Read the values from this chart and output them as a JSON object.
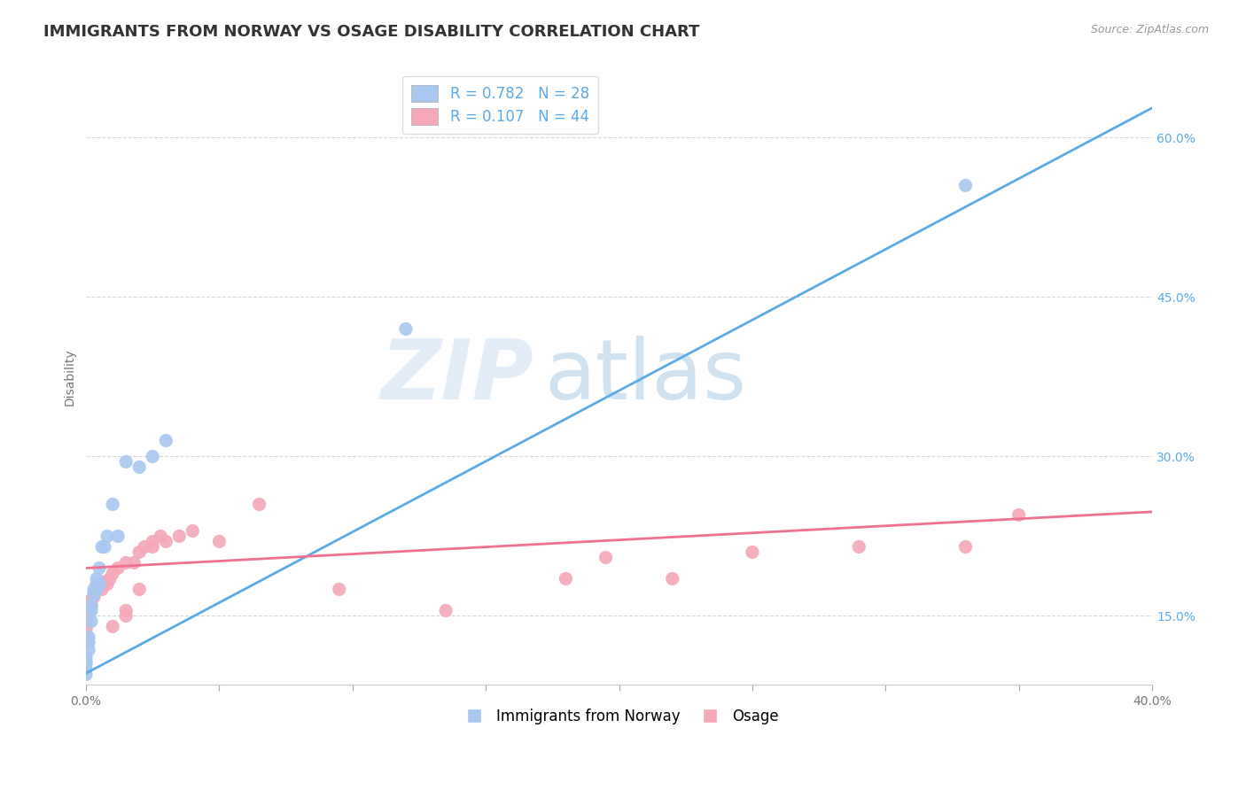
{
  "title": "IMMIGRANTS FROM NORWAY VS OSAGE DISABILITY CORRELATION CHART",
  "source_text": "Source: ZipAtlas.com",
  "ylabel": "Disability",
  "xmin": 0.0,
  "xmax": 0.4,
  "ymin": 0.085,
  "ymax": 0.665,
  "yticks": [
    0.15,
    0.3,
    0.45,
    0.6
  ],
  "ytick_labels": [
    "15.0%",
    "30.0%",
    "45.0%",
    "60.0%"
  ],
  "xticks": [
    0.0,
    0.05,
    0.1,
    0.15,
    0.2,
    0.25,
    0.3,
    0.35,
    0.4
  ],
  "xtick_labels_show": [
    "0.0%",
    "",
    "",
    "",
    "",
    "",
    "",
    "",
    "40.0%"
  ],
  "norway_color": "#a8c8f0",
  "osage_color": "#f4a8b8",
  "norway_line_color": "#5baae8",
  "osage_line_color": "#f07090",
  "norway_R": 0.782,
  "norway_N": 28,
  "osage_R": 0.107,
  "osage_N": 44,
  "legend_label_1": "Immigrants from Norway",
  "legend_label_2": "Osage",
  "norway_line_x0": 0.0,
  "norway_line_y0": 0.096,
  "norway_line_x1": 0.4,
  "norway_line_y1": 0.628,
  "osage_line_x0": 0.0,
  "osage_line_y0": 0.195,
  "osage_line_x1": 0.4,
  "osage_line_y1": 0.248,
  "norway_x": [
    0.0,
    0.0,
    0.0,
    0.0,
    0.0,
    0.001,
    0.001,
    0.001,
    0.002,
    0.002,
    0.002,
    0.003,
    0.003,
    0.004,
    0.004,
    0.005,
    0.005,
    0.006,
    0.007,
    0.008,
    0.01,
    0.012,
    0.015,
    0.02,
    0.025,
    0.03,
    0.12,
    0.33
  ],
  "norway_y": [
    0.095,
    0.1,
    0.105,
    0.108,
    0.112,
    0.118,
    0.125,
    0.13,
    0.145,
    0.155,
    0.16,
    0.17,
    0.175,
    0.175,
    0.185,
    0.18,
    0.195,
    0.215,
    0.215,
    0.225,
    0.255,
    0.225,
    0.295,
    0.29,
    0.3,
    0.315,
    0.42,
    0.555
  ],
  "osage_x": [
    0.0,
    0.0,
    0.0,
    0.0,
    0.001,
    0.001,
    0.002,
    0.002,
    0.003,
    0.003,
    0.004,
    0.004,
    0.005,
    0.006,
    0.007,
    0.008,
    0.009,
    0.01,
    0.012,
    0.015,
    0.018,
    0.02,
    0.022,
    0.025,
    0.028,
    0.03,
    0.035,
    0.04,
    0.05,
    0.065,
    0.18,
    0.195,
    0.22,
    0.25,
    0.29,
    0.33,
    0.35,
    0.015,
    0.02,
    0.025,
    0.01,
    0.015,
    0.095,
    0.135
  ],
  "osage_y": [
    0.13,
    0.138,
    0.145,
    0.15,
    0.155,
    0.16,
    0.16,
    0.165,
    0.168,
    0.172,
    0.175,
    0.18,
    0.178,
    0.175,
    0.182,
    0.18,
    0.185,
    0.19,
    0.195,
    0.2,
    0.2,
    0.21,
    0.215,
    0.22,
    0.225,
    0.22,
    0.225,
    0.23,
    0.22,
    0.255,
    0.185,
    0.205,
    0.185,
    0.21,
    0.215,
    0.215,
    0.245,
    0.155,
    0.175,
    0.215,
    0.14,
    0.15,
    0.175,
    0.155
  ],
  "background_color": "#ffffff",
  "grid_color": "#cccccc",
  "watermark_zip": "ZIP",
  "watermark_atlas": "atlas",
  "title_fontsize": 13,
  "axis_fontsize": 10,
  "legend_fontsize": 12
}
